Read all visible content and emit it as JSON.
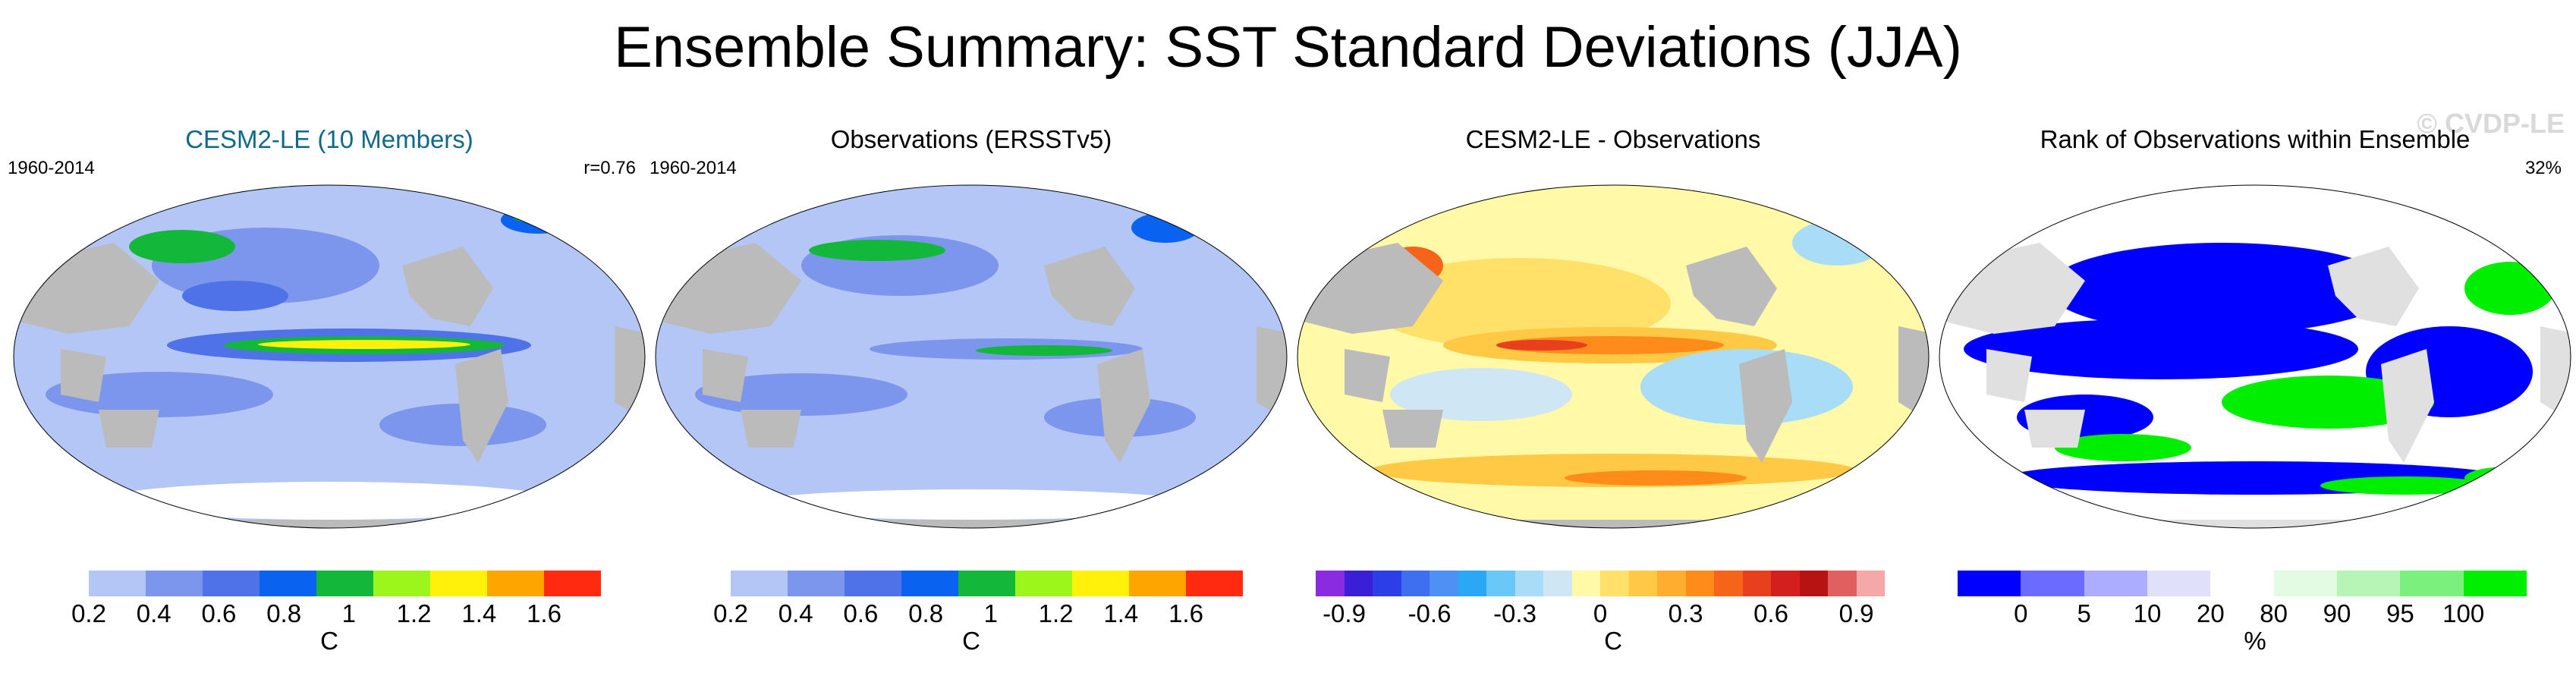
{
  "figure": {
    "title": "Ensemble Summary: SST Standard Deviations (JJA)",
    "watermark": "© CVDP-LE"
  },
  "panels": [
    {
      "title": "CESM2-LE (10 Members)",
      "period": "1960-2014",
      "stat": "r=0.76",
      "unit": "C",
      "colorbar": {
        "colors": [
          "#ffffff",
          "#b3c6f5",
          "#7b96ec",
          "#4f72e8",
          "#0a62f0",
          "#13b83a",
          "#9cf51b",
          "#fff10a",
          "#ffa500",
          "#ff2a10"
        ],
        "tick_labels": [
          "0.2",
          "0.4",
          "0.6",
          "0.8",
          "1",
          "1.2",
          "1.4",
          "1.6"
        ]
      }
    },
    {
      "title": "Observations (ERSSTv5)",
      "period": "1960-2014",
      "stat": "",
      "unit": "C",
      "colorbar": {
        "colors": [
          "#ffffff",
          "#b3c6f5",
          "#7b96ec",
          "#4f72e8",
          "#0a62f0",
          "#13b83a",
          "#9cf51b",
          "#fff10a",
          "#ffa500",
          "#ff2a10"
        ],
        "tick_labels": [
          "0.2",
          "0.4",
          "0.6",
          "0.8",
          "1",
          "1.2",
          "1.4",
          "1.6"
        ]
      }
    },
    {
      "title": "CESM2-LE - Observations",
      "period": "",
      "stat": "",
      "unit": "C",
      "colorbar": {
        "colors": [
          "#8a2be2",
          "#3b1fd6",
          "#2c3ee8",
          "#3e6ff0",
          "#4f90f5",
          "#2ba8f5",
          "#69c8f7",
          "#a8dcf7",
          "#cfe6f5",
          "#fff9a8",
          "#ffe16a",
          "#ffc845",
          "#ffad2e",
          "#ff8c1a",
          "#f56419",
          "#e8401e",
          "#d41f1f",
          "#b81313",
          "#e06060",
          "#f5a8a8"
        ],
        "tick_labels": [
          "-0.9",
          "-0.6",
          "-0.3",
          "0",
          "0.3",
          "0.6",
          "0.9"
        ]
      }
    },
    {
      "title": "Rank of Observations within Ensemble",
      "period": "",
      "stat": "32%",
      "unit": "%",
      "colorbar": {
        "colors": [
          "#0000ff",
          "#6b6bff",
          "#adadff",
          "#e0e0fb",
          "#ffffff",
          "#e2fbe2",
          "#b6f5b6",
          "#7cf07c",
          "#00ee00"
        ],
        "tick_labels": [
          "0",
          "5",
          "10",
          "20",
          "80",
          "90",
          "95",
          "100"
        ]
      }
    }
  ]
}
